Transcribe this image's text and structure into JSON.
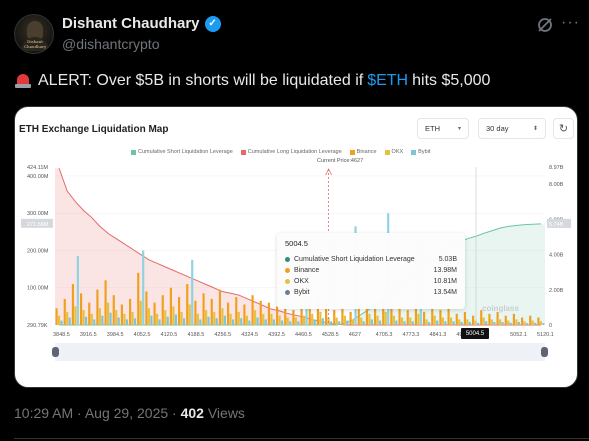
{
  "author": {
    "name": "Dishant Chaudhary",
    "handle": "@dishantcrypto",
    "avatar_text": "Dishant Chaudhary"
  },
  "tweet": {
    "text_before": "ALERT: Over $5B in shorts will be liquidated if",
    "cashtag": "$ETH",
    "text_after": "hits $5,000",
    "icon": "police-siren-icon"
  },
  "meta": {
    "time": "10:29 AM",
    "sep1": "·",
    "date": "Aug 29, 2025",
    "sep2": "·",
    "views_count": "402",
    "views_label": "Views"
  },
  "card": {
    "title": "ETH Exchange Liquidation Map",
    "asset_select": "ETH",
    "range_select": "30 day",
    "current_price_label": "Current Price:4627",
    "watermark": "coinglass",
    "price_tag": "5004.5"
  },
  "tooltip": {
    "title": "5004.5",
    "rows": [
      {
        "label": "Cumulative Short Liquidation Leverage",
        "value": "5.03B",
        "color": "#2f8f7a"
      },
      {
        "label": "Binance",
        "value": "13.98M",
        "color": "#f0a020"
      },
      {
        "label": "OKX",
        "value": "10.81M",
        "color": "#e8c040"
      },
      {
        "label": "Bybit",
        "value": "13.54M",
        "color": "#6a7f95"
      }
    ]
  },
  "chart_data": {
    "type": "bar",
    "title": "ETH Exchange Liquidation Map",
    "legend": [
      {
        "name": "Cumulative Short Liquidation Leverage",
        "color": "#6fc3a8"
      },
      {
        "name": "Cumulative Long Liquidation Leverage",
        "color": "#e46a6a"
      },
      {
        "name": "Binance",
        "color": "#f0a020"
      },
      {
        "name": "OKX",
        "color": "#e8c040"
      },
      {
        "name": "Bybit",
        "color": "#7cc6d8"
      }
    ],
    "legend_position": "top",
    "current_price": 4627,
    "x_ticks": [
      "3848.5",
      "3916.5",
      "3984.5",
      "4052.5",
      "4120.5",
      "4188.5",
      "4256.5",
      "4324.5",
      "4392.5",
      "4460.5",
      "4528.5",
      "4627",
      "4705.3",
      "4773.3",
      "4841.3",
      "4909.3",
      "5004.5",
      "5052.1",
      "5120.1"
    ],
    "left_axis": {
      "ticks": [
        "424.11M",
        "400.00M",
        "300.00M",
        "271.56M",
        "200.00M",
        "100.00M",
        "290.79K"
      ],
      "range": [
        0.29,
        424.11
      ],
      "unit": "M"
    },
    "right_axis": {
      "ticks": [
        "8.97B",
        "8.00B",
        "6.00B",
        "5.74B",
        "4.00B",
        "2.00B",
        "0"
      ],
      "range": [
        0,
        8.97
      ],
      "unit": "B"
    },
    "long_cumulative_B": [
      8.9,
      7.6,
      7.0,
      6.5,
      6.1,
      5.6,
      5.2,
      4.9,
      4.6,
      4.3,
      4.0,
      3.7,
      3.5,
      3.3,
      3.1,
      2.9,
      2.7,
      2.5,
      2.3,
      2.1,
      1.9,
      1.8,
      1.7,
      1.5,
      1.3,
      1.1,
      0.9,
      0.8,
      0.65,
      0.55,
      0.45,
      0.3,
      0.2,
      0.1,
      0.05,
      0,
      0,
      0,
      0,
      0,
      0,
      0,
      0,
      0,
      0,
      0,
      0,
      0,
      0,
      0,
      0,
      0,
      0,
      0,
      0,
      0,
      0,
      0,
      0,
      0
    ],
    "short_cumulative_B": [
      0,
      0,
      0,
      0,
      0,
      0,
      0,
      0,
      0,
      0,
      0,
      0,
      0,
      0,
      0,
      0,
      0,
      0,
      0,
      0,
      0,
      0,
      0,
      0,
      0,
      0,
      0,
      0,
      0,
      0,
      0,
      0,
      0,
      0,
      0,
      0.1,
      0.3,
      0.6,
      0.9,
      1.2,
      1.6,
      2.0,
      2.4,
      2.8,
      3.2,
      3.5,
      3.8,
      4.1,
      4.4,
      4.7,
      4.9,
      5.03,
      5.2,
      5.35,
      5.5,
      5.6,
      5.65,
      5.7,
      5.72,
      5.74
    ],
    "binance_M": [
      45,
      70,
      110,
      85,
      60,
      95,
      120,
      80,
      55,
      70,
      140,
      90,
      60,
      80,
      100,
      75,
      110,
      65,
      85,
      70,
      95,
      60,
      75,
      55,
      80,
      65,
      60,
      50,
      45,
      40,
      55,
      60,
      70,
      45,
      40,
      50,
      35,
      45,
      60,
      50,
      70,
      55,
      45,
      40,
      60,
      35,
      50,
      40,
      45,
      30,
      35,
      25,
      40,
      30,
      35,
      25,
      30,
      20,
      25,
      20
    ],
    "okx_M": [
      25,
      35,
      50,
      40,
      30,
      45,
      60,
      40,
      30,
      35,
      65,
      45,
      30,
      40,
      50,
      35,
      55,
      30,
      40,
      35,
      45,
      30,
      35,
      25,
      40,
      30,
      30,
      25,
      20,
      20,
      25,
      30,
      35,
      20,
      20,
      25,
      15,
      20,
      30,
      25,
      35,
      25,
      20,
      20,
      30,
      15,
      25,
      20,
      20,
      15,
      15,
      12,
      20,
      15,
      15,
      12,
      15,
      10,
      12,
      10
    ],
    "bybit_M": [
      12,
      20,
      28,
      22,
      15,
      25,
      33,
      20,
      15,
      18,
      35,
      25,
      15,
      22,
      28,
      18,
      30,
      15,
      22,
      18,
      25,
      15,
      18,
      12,
      20,
      15,
      15,
      12,
      10,
      10,
      12,
      15,
      18,
      10,
      10,
      12,
      8,
      10,
      15,
      12,
      18,
      12,
      10,
      10,
      15,
      8,
      12,
      10,
      10,
      8,
      8,
      6,
      10,
      8,
      8,
      6,
      8,
      5,
      6,
      5
    ],
    "spikes_M": [
      {
        "index": 2,
        "value": 185
      },
      {
        "index": 10,
        "value": 200
      },
      {
        "index": 16,
        "value": 175
      },
      {
        "index": 30,
        "value": 210
      },
      {
        "index": 36,
        "value": 265
      },
      {
        "index": 40,
        "value": 300
      },
      {
        "index": 44,
        "value": 230
      }
    ],
    "grid": true
  }
}
